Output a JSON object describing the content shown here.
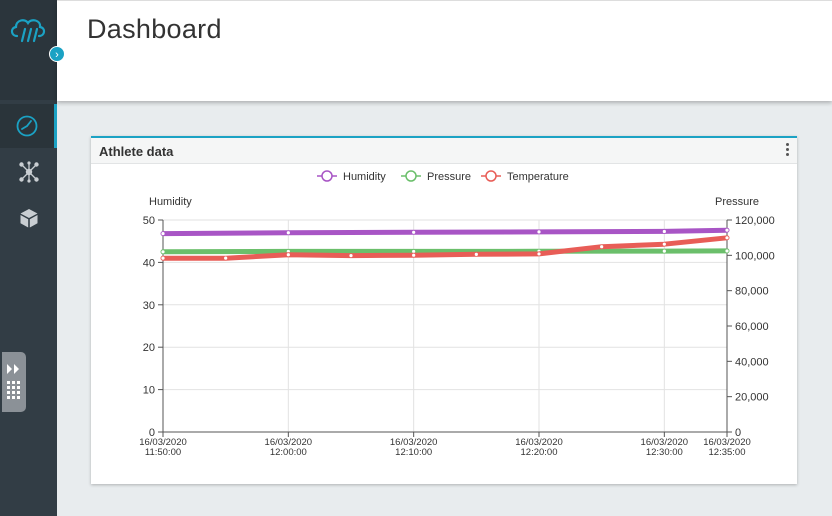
{
  "header": {
    "title": "Dashboard"
  },
  "sidebar": {
    "items": [
      {
        "icon": "dashboard-gauge-icon",
        "active": true
      },
      {
        "icon": "network-hub-icon",
        "active": false
      },
      {
        "icon": "cube-icon",
        "active": false
      }
    ]
  },
  "colors": {
    "accent": "#1ba2c4",
    "humidity": "#a855c5",
    "pressure": "#6bbf6b",
    "temperature": "#e85d57"
  },
  "card": {
    "title": "Athlete data"
  },
  "chart_data": {
    "type": "line",
    "title": "",
    "legend_position": "top-center",
    "grid": true,
    "x_ticks": [
      {
        "date": "16/03/2020",
        "time": "11:50:00"
      },
      {
        "date": "16/03/2020",
        "time": "12:00:00"
      },
      {
        "date": "16/03/2020",
        "time": "12:10:00"
      },
      {
        "date": "16/03/2020",
        "time": "12:20:00"
      },
      {
        "date": "16/03/2020",
        "time": "12:30:00"
      },
      {
        "date": "16/03/2020",
        "time": "12:35:00"
      }
    ],
    "xlim": [
      "11:50:00",
      "12:35:00"
    ],
    "y_left": {
      "label": "Humidity",
      "ticks": [
        "0",
        "10",
        "20",
        "30",
        "40",
        "50"
      ],
      "lim": [
        0,
        50
      ]
    },
    "y_right": {
      "label": "Pressure",
      "ticks": [
        "0",
        "20,000",
        "40,000",
        "60,000",
        "80,000",
        "100,000",
        "120,000"
      ],
      "lim": [
        0,
        120000
      ]
    },
    "series": [
      {
        "name": "Humidity",
        "axis": "left",
        "color": "#a855c5",
        "points": [
          [
            "11:50:00",
            46.8
          ],
          [
            "12:00:00",
            47.0
          ],
          [
            "12:10:00",
            47.1
          ],
          [
            "12:20:00",
            47.2
          ],
          [
            "12:30:00",
            47.3
          ],
          [
            "12:35:00",
            47.6
          ]
        ]
      },
      {
        "name": "Pressure",
        "axis": "right",
        "color": "#6bbf6b",
        "points": [
          [
            "11:50:00",
            102000
          ],
          [
            "12:00:00",
            102200
          ],
          [
            "12:10:00",
            102200
          ],
          [
            "12:20:00",
            102300
          ],
          [
            "12:30:00",
            102400
          ],
          [
            "12:35:00",
            102500
          ]
        ]
      },
      {
        "name": "Temperature",
        "axis": "left",
        "color": "#e85d57",
        "points": [
          [
            "11:50:00",
            41.0
          ],
          [
            "11:55:00",
            41.0
          ],
          [
            "12:00:00",
            41.8
          ],
          [
            "12:05:00",
            41.6
          ],
          [
            "12:10:00",
            41.7
          ],
          [
            "12:15:00",
            41.9
          ],
          [
            "12:20:00",
            42.0
          ],
          [
            "12:25:00",
            43.7
          ],
          [
            "12:30:00",
            44.3
          ],
          [
            "12:35:00",
            45.8
          ]
        ]
      }
    ]
  }
}
